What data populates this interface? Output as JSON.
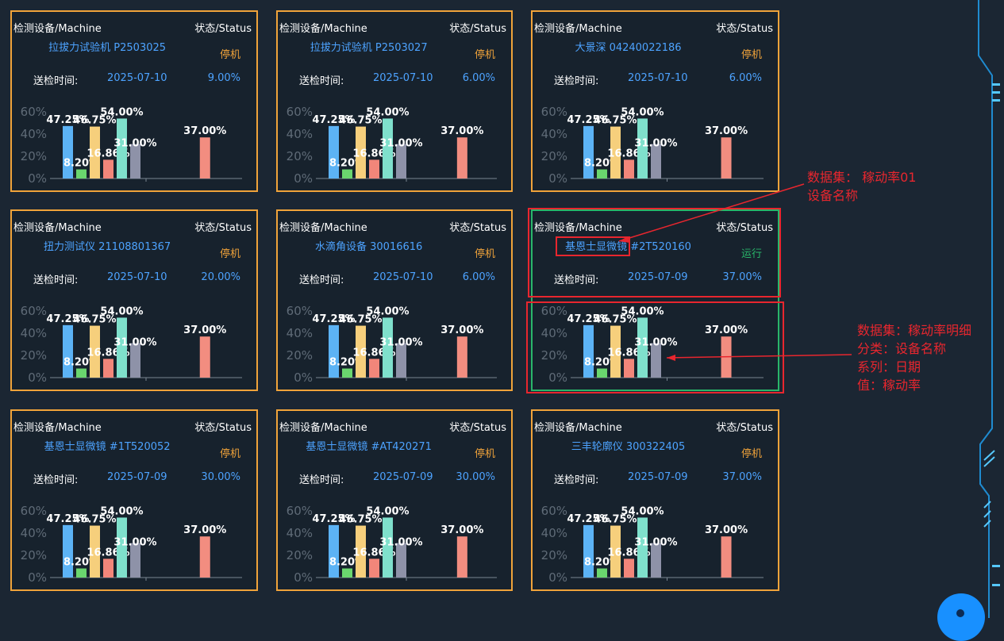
{
  "labels": {
    "machine_header": "检测设备/Machine",
    "status_header": "状态/Status",
    "inspect_time_label": "送检时间:"
  },
  "colors": {
    "card_border_stopped": "#f0a33a",
    "card_border_running": "#29b66a",
    "annotation": "#e8262e",
    "link_blue": "#4da3ff"
  },
  "cards": [
    {
      "device": "拉拔力试验机 P2503025",
      "status": "停机",
      "date": "2025-07-10",
      "rate": "9.00%"
    },
    {
      "device": "拉拔力试验机 P2503027",
      "status": "停机",
      "date": "2025-07-10",
      "rate": "6.00%"
    },
    {
      "device": "大景深 04240022186",
      "status": "停机",
      "date": "2025-07-10",
      "rate": "6.00%"
    },
    {
      "device": "扭力测试仪 21108801367",
      "status": "停机",
      "date": "2025-07-10",
      "rate": "20.00%"
    },
    {
      "device": "水滴角设备 30016616",
      "status": "停机",
      "date": "2025-07-10",
      "rate": "6.00%"
    },
    {
      "device": "基恩士显微镜 #2T520160",
      "status": "运行",
      "date": "2025-07-09",
      "rate": "37.00%"
    },
    {
      "device": "基恩士显微镜 #1T520052",
      "status": "停机",
      "date": "2025-07-09",
      "rate": "30.00%"
    },
    {
      "device": "基恩士显微镜 #AT420271",
      "status": "停机",
      "date": "2025-07-09",
      "rate": "30.00%"
    },
    {
      "device": "三丰轮廓仪 300322405",
      "status": "停机",
      "date": "2025-07-09",
      "rate": "37.00%"
    }
  ],
  "chart_data": {
    "type": "bar",
    "ylim": [
      0,
      60
    ],
    "y_ticks": [
      "0%",
      "20%",
      "40%",
      "60%"
    ],
    "series": [
      {
        "values": [
          47.25,
          8.2,
          46.75,
          16.86,
          54.0,
          31.0
        ],
        "labels": [
          "47.25%",
          "8.20%",
          "46.75%",
          "16.86%",
          "54.00%",
          "31.00%"
        ]
      },
      {
        "values": [
          37.0
        ],
        "labels": [
          "37.00%"
        ]
      }
    ],
    "bar_colors": [
      "#5cb3f5",
      "#6ad66e",
      "#f6cf7c",
      "#f2867a",
      "#7fe0cc",
      "#8e92a8",
      "#f28d80"
    ]
  },
  "annotations": {
    "dataset1_line1": "数据集：  稼动率01",
    "dataset1_line2": "设备名称",
    "dataset2_line1": "数据集：稼动率明细",
    "dataset2_line2": "分类：设备名称",
    "dataset2_line3": "系列：日期",
    "dataset2_line4": "值：稼动率"
  }
}
